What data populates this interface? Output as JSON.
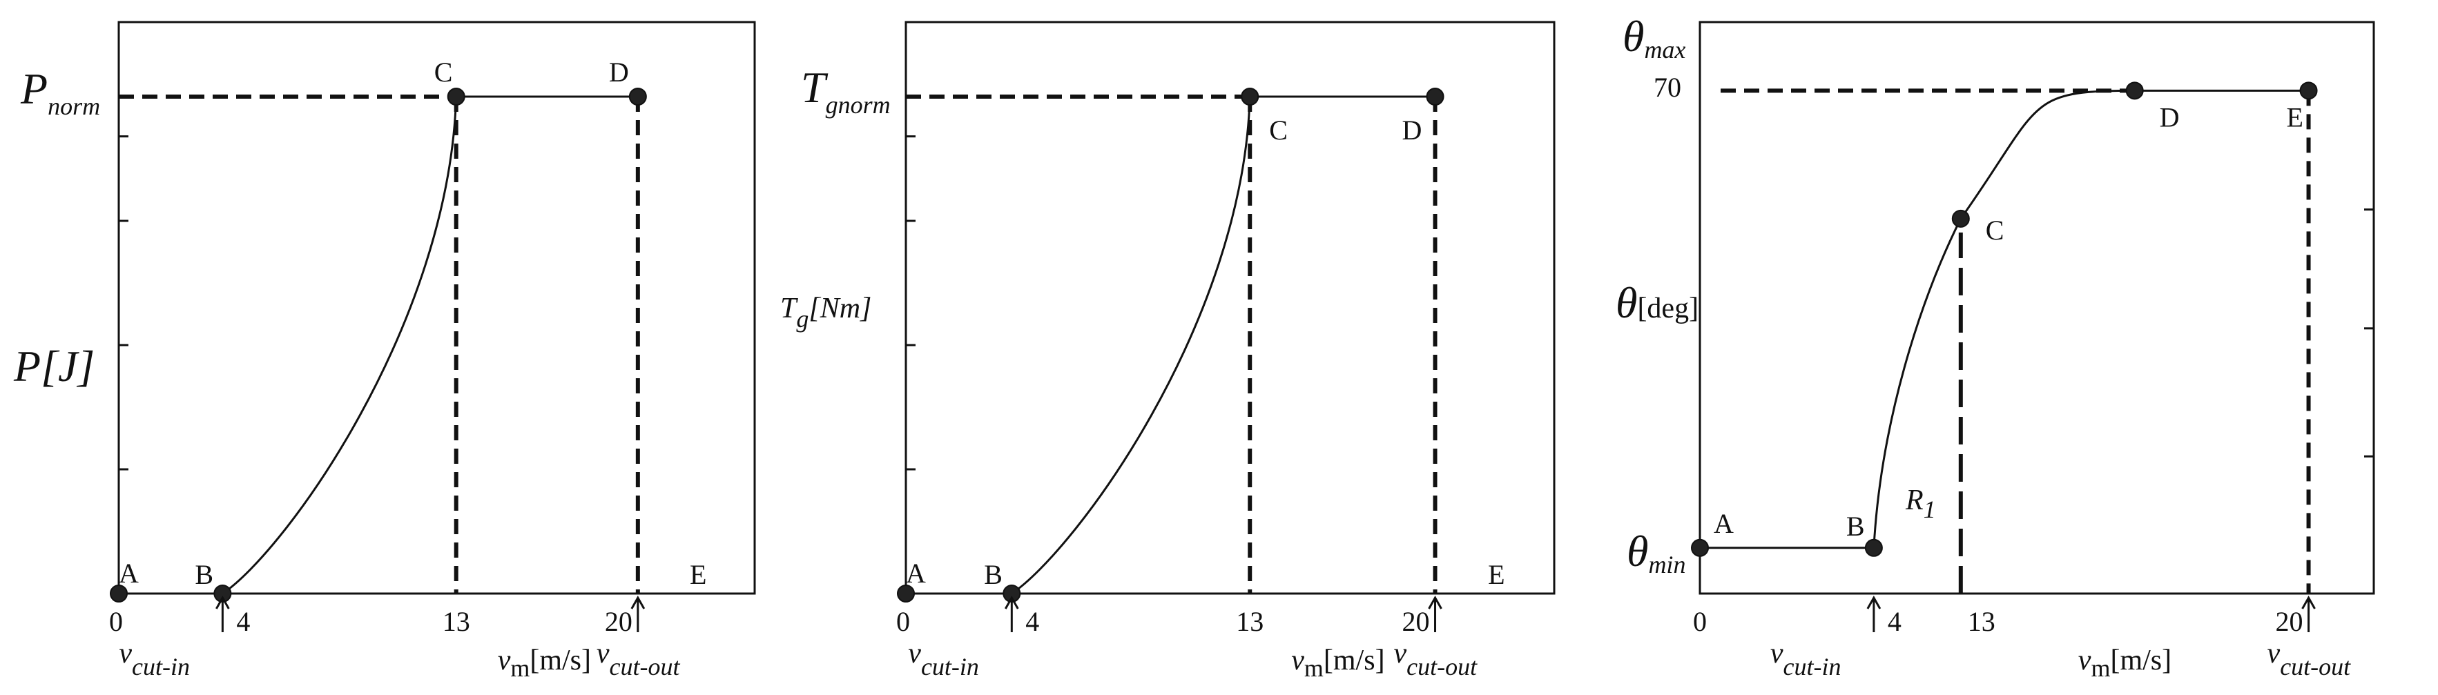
{
  "chart_data": [
    {
      "type": "line",
      "xlabel": {
        "main": "v",
        "sub": "m",
        "rest": "[m/s]"
      },
      "ylabel": {
        "main": "P",
        "rest": "[J]"
      },
      "ylevel_label": {
        "main": "P",
        "sub": "norm"
      },
      "x_ticks": [
        "0",
        "4",
        "13",
        "20"
      ],
      "cut_in_label": {
        "main": "v",
        "sub": "cut-in"
      },
      "cut_out_label": {
        "main": "v",
        "sub": "cut-out"
      },
      "points": [
        {
          "label": "A",
          "x": 0,
          "y": 0
        },
        {
          "label": "B",
          "x": 4,
          "y": 0
        },
        {
          "label": "C",
          "x": 13,
          "y": 1
        },
        {
          "label": "D",
          "x": 20,
          "y": 1
        },
        {
          "label": "E",
          "x": 22,
          "y": 0
        }
      ],
      "xlim": [
        0,
        24.5
      ],
      "ylim": [
        0,
        1.15
      ]
    },
    {
      "type": "line",
      "xlabel": {
        "main": "v",
        "sub": "m",
        "rest": "[m/s]"
      },
      "ylabel": {
        "main": "T",
        "sub": "g",
        "rest": "[Nm]"
      },
      "ylevel_label": {
        "main": "T",
        "sub": "gnorm"
      },
      "x_ticks": [
        "0",
        "4",
        "13",
        "20"
      ],
      "cut_in_label": {
        "main": "v",
        "sub": "cut-in"
      },
      "cut_out_label": {
        "main": "v",
        "sub": "cut-out"
      },
      "points": [
        {
          "label": "A",
          "x": 0,
          "y": 0
        },
        {
          "label": "B",
          "x": 4,
          "y": 0
        },
        {
          "label": "C",
          "x": 13,
          "y": 1
        },
        {
          "label": "D",
          "x": 20,
          "y": 1
        },
        {
          "label": "E",
          "x": 22,
          "y": 0
        }
      ],
      "xlim": [
        0,
        24.5
      ],
      "ylim": [
        0,
        1.15
      ]
    },
    {
      "type": "line",
      "xlabel": {
        "main": "v",
        "sub": "m",
        "rest": "[m/s]"
      },
      "ylabel": {
        "main": "θ",
        "rest": "[deg]"
      },
      "ymax_label": {
        "main": "θ",
        "sub": "max"
      },
      "ymax_value": "70",
      "ymin_label": {
        "main": "θ",
        "sub": "min"
      },
      "x_ticks": [
        "0",
        "4",
        "13",
        "20"
      ],
      "cut_in_label": {
        "main": "v",
        "sub": "cut-in"
      },
      "cut_out_label": {
        "main": "v",
        "sub": "cut-out"
      },
      "region_label": {
        "main": "R",
        "sub": "1"
      },
      "points": [
        {
          "label": "A",
          "x": 0,
          "y": 0
        },
        {
          "label": "B",
          "x": 4,
          "y": 0
        },
        {
          "label": "C",
          "x": 6,
          "y": 0.72
        },
        {
          "label": "D",
          "x": 10,
          "y": 1
        },
        {
          "label": "E",
          "x": 14,
          "y": 1
        }
      ],
      "xlim": [
        0,
        15.5
      ],
      "ylim": [
        -0.1,
        1.15
      ]
    }
  ]
}
